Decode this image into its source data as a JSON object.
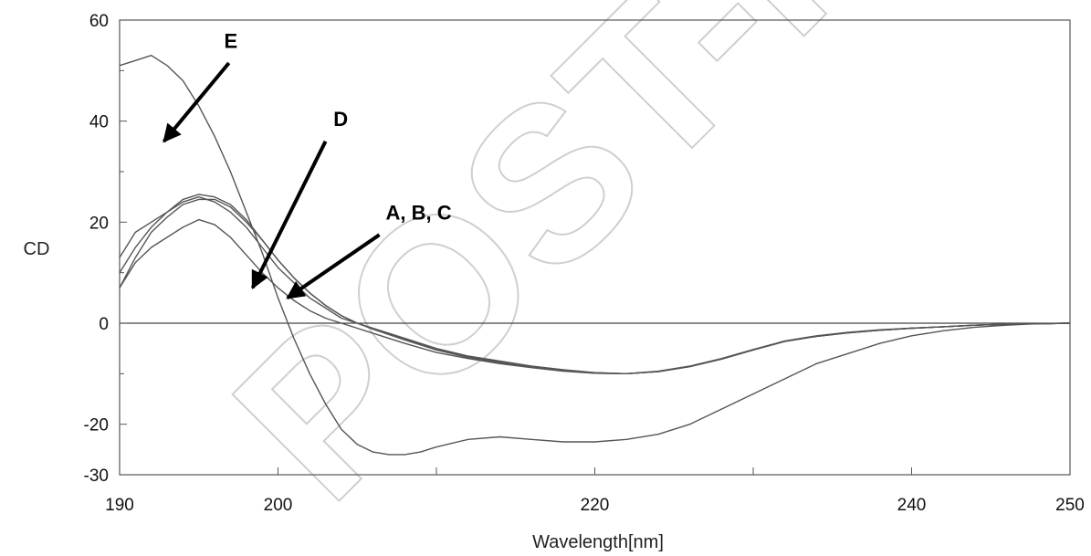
{
  "watermark_text": "POST-PRINT",
  "chart_data": {
    "type": "line",
    "title": "",
    "xlabel": "Wavelength[nm]",
    "ylabel": "CD",
    "xlim": [
      190,
      250
    ],
    "ylim": [
      -30,
      60
    ],
    "x_ticks": [
      190,
      200,
      220,
      240,
      250
    ],
    "x_minor_ticks": [
      210,
      230
    ],
    "y_ticks": [
      60,
      40,
      20,
      0,
      -20,
      -30
    ],
    "grid": false,
    "legend": "none",
    "zero_line": true,
    "line_color": "#555555",
    "series": [
      {
        "x": [
          190,
          191,
          192,
          193,
          194,
          195,
          196,
          197,
          198,
          199,
          200,
          201,
          202,
          203,
          204,
          205,
          206,
          207,
          208,
          209,
          210,
          212,
          214,
          216,
          218,
          220,
          222,
          224,
          226,
          228,
          230,
          232,
          234,
          236,
          238,
          240,
          242,
          244,
          246,
          248,
          250
        ],
        "y": [
          51,
          52,
          53,
          51,
          48,
          43,
          37,
          30,
          22,
          14,
          5,
          -3,
          -10,
          -16,
          -21,
          -24,
          -25.5,
          -26,
          -26,
          -25.5,
          -24.5,
          -23,
          -22.5,
          -23,
          -23.5,
          -23.5,
          -23,
          -22,
          -20,
          -17,
          -14,
          -11,
          -8,
          -6,
          -4,
          -2.5,
          -1.5,
          -0.8,
          -0.4,
          -0.1,
          0
        ]
      },
      {
        "x": [
          190,
          191,
          192,
          193,
          194,
          195,
          196,
          197,
          198,
          199,
          200,
          201,
          202,
          203,
          204,
          205,
          206,
          208,
          210,
          212,
          214,
          216,
          218,
          220,
          222,
          224,
          226,
          228,
          230,
          232,
          234,
          236,
          238,
          240,
          242,
          244,
          246,
          248,
          250
        ],
        "y": [
          13,
          18,
          20,
          22,
          24,
          25,
          24,
          22,
          19,
          15,
          11,
          8,
          5,
          3,
          1,
          0,
          -1,
          -3,
          -5,
          -6.5,
          -7.5,
          -8.5,
          -9.2,
          -9.8,
          -10,
          -9.5,
          -8.5,
          -7,
          -5.2,
          -3.5,
          -2.5,
          -1.8,
          -1.3,
          -1,
          -0.7,
          -0.4,
          -0.2,
          -0.1,
          0
        ]
      },
      {
        "x": [
          190,
          191,
          192,
          193,
          194,
          195,
          196,
          197,
          198,
          199,
          200,
          201,
          202,
          203,
          204,
          205,
          206,
          208,
          210,
          212,
          214,
          216,
          218,
          220,
          222,
          224,
          226,
          228,
          230,
          232,
          234,
          236,
          238,
          240,
          242,
          244,
          246,
          248,
          250
        ],
        "y": [
          10,
          15,
          19,
          22,
          24.5,
          25.5,
          25,
          23.5,
          20.5,
          16.5,
          12.5,
          9,
          6,
          3.5,
          1.5,
          0,
          -1.2,
          -3.3,
          -5.3,
          -6.8,
          -7.8,
          -8.7,
          -9.4,
          -9.9,
          -10,
          -9.6,
          -8.6,
          -7.1,
          -5.3,
          -3.6,
          -2.6,
          -1.9,
          -1.4,
          -1,
          -0.7,
          -0.4,
          -0.2,
          -0.1,
          0
        ]
      },
      {
        "x": [
          190,
          191,
          192,
          193,
          194,
          195,
          196,
          197,
          198,
          199,
          200,
          201,
          202,
          203,
          204,
          205,
          206,
          208,
          210,
          212,
          214,
          216,
          218,
          220,
          222,
          224,
          226,
          228,
          230,
          232,
          234,
          236,
          238,
          240,
          242,
          244,
          246,
          248,
          250
        ],
        "y": [
          7,
          13,
          18,
          21,
          23.5,
          24.5,
          24.5,
          23,
          20,
          16.5,
          12.5,
          9,
          6,
          3.5,
          1.5,
          0,
          -1.1,
          -3.1,
          -5.1,
          -6.7,
          -7.7,
          -8.6,
          -9.3,
          -9.8,
          -10,
          -9.6,
          -8.6,
          -7.1,
          -5.3,
          -3.6,
          -2.6,
          -1.9,
          -1.4,
          -1,
          -0.7,
          -0.4,
          -0.2,
          -0.1,
          0
        ]
      },
      {
        "x": [
          190,
          191,
          192,
          193,
          194,
          195,
          196,
          197,
          198,
          199,
          200,
          201,
          202,
          203,
          204,
          205,
          206,
          208,
          210,
          212,
          214,
          216,
          218,
          220,
          222,
          224,
          226,
          228,
          230,
          232,
          234,
          236,
          238,
          240,
          242,
          244,
          246,
          248,
          250
        ],
        "y": [
          7,
          12,
          15,
          17,
          19,
          20.5,
          19.5,
          17,
          13.5,
          10,
          7,
          4.5,
          2.5,
          1,
          0,
          -1,
          -2,
          -4,
          -5.8,
          -7,
          -8,
          -8.8,
          -9.5,
          -9.9,
          -10,
          -9.6,
          -8.6,
          -7.1,
          -5.3,
          -3.6,
          -2.6,
          -1.9,
          -1.4,
          -1,
          -0.7,
          -0.4,
          -0.2,
          -0.1,
          0
        ]
      }
    ],
    "annotations": [
      {
        "label": "E",
        "text_at": [
          196.6,
          54.5
        ],
        "arrow_from": [
          196.9,
          51.5
        ],
        "arrow_to": [
          192.8,
          36
        ]
      },
      {
        "label": "D",
        "text_at": [
          203.5,
          39
        ],
        "arrow_from": [
          203,
          36
        ],
        "arrow_to": [
          198.4,
          7
        ]
      },
      {
        "label": "A, B, C",
        "text_at": [
          206.8,
          20.5
        ],
        "arrow_from": [
          206.4,
          17.5
        ],
        "arrow_to": [
          200.6,
          5
        ]
      }
    ]
  }
}
